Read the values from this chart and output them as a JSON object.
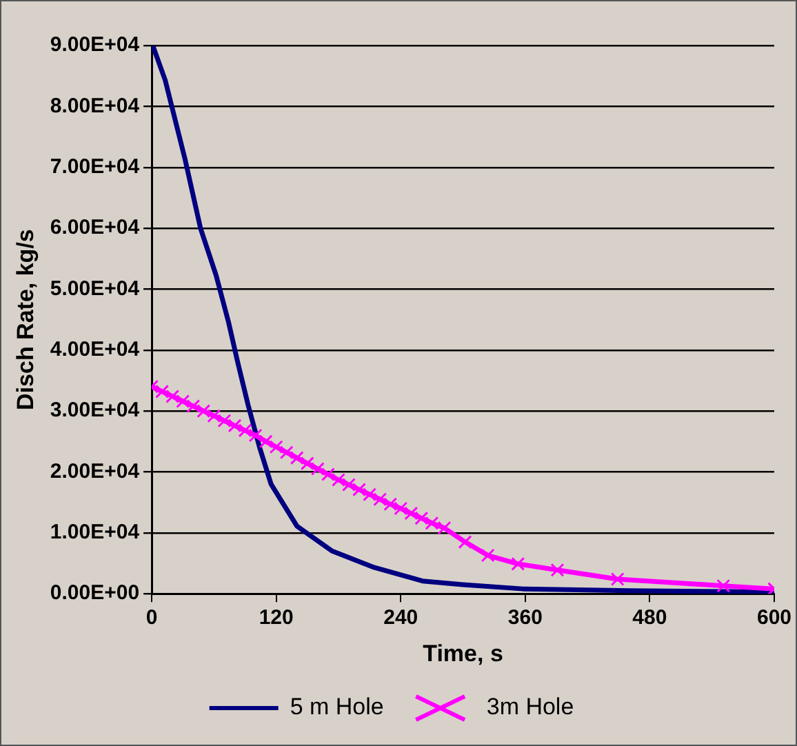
{
  "chart_data": {
    "type": "line",
    "xlabel": "Time, s",
    "ylabel": "Disch Rate, kg/s",
    "xlim": [
      0,
      600
    ],
    "xticks": [
      0,
      120,
      240,
      360,
      480,
      600
    ],
    "ylim": [
      0,
      90000
    ],
    "yticks": [
      {
        "value": 0,
        "label": "0.00E+00"
      },
      {
        "value": 10000,
        "label": "1.00E+04"
      },
      {
        "value": 20000,
        "label": "2.00E+04"
      },
      {
        "value": 30000,
        "label": "3.00E+04"
      },
      {
        "value": 40000,
        "label": "4.00E+04"
      },
      {
        "value": 50000,
        "label": "5.00E+04"
      },
      {
        "value": 60000,
        "label": "6.00E+04"
      },
      {
        "value": 70000,
        "label": "7.00E+04"
      },
      {
        "value": 80000,
        "label": "8.00E+04"
      },
      {
        "value": 90000,
        "label": "9.00E+04"
      }
    ],
    "grid": "y",
    "legend": "bottom",
    "series": [
      {
        "name": "5 m Hole",
        "color": "#000080",
        "marker": "none",
        "x": [
          1,
          13,
          32,
          47,
          62,
          74,
          83,
          93,
          104,
          115,
          140,
          174,
          213,
          261,
          300,
          358,
          461,
          600
        ],
        "values": [
          90000,
          84300,
          71400,
          60000,
          52300,
          44600,
          37900,
          30900,
          24000,
          18000,
          11100,
          7000,
          4400,
          2100,
          1500,
          800,
          500,
          300
        ]
      },
      {
        "name": "3m Hole",
        "color": "#ff00ff",
        "marker": "cross",
        "x": [
          0,
          10,
          20,
          30,
          40,
          50,
          60,
          70,
          80,
          90,
          100,
          110,
          120,
          130,
          140,
          150,
          160,
          170,
          180,
          190,
          200,
          210,
          220,
          230,
          240,
          250,
          260,
          270,
          282,
          302,
          324,
          353,
          391,
          449,
          551,
          600
        ],
        "values": [
          34000,
          33200,
          32400,
          31600,
          30800,
          30000,
          29200,
          28400,
          27600,
          26800,
          26000,
          25000,
          24100,
          23200,
          22300,
          21400,
          20500,
          19600,
          18700,
          17900,
          17100,
          16300,
          15500,
          14700,
          14000,
          13200,
          12400,
          11600,
          10800,
          8500,
          6300,
          4900,
          3900,
          2400,
          1300,
          800
        ]
      }
    ]
  }
}
